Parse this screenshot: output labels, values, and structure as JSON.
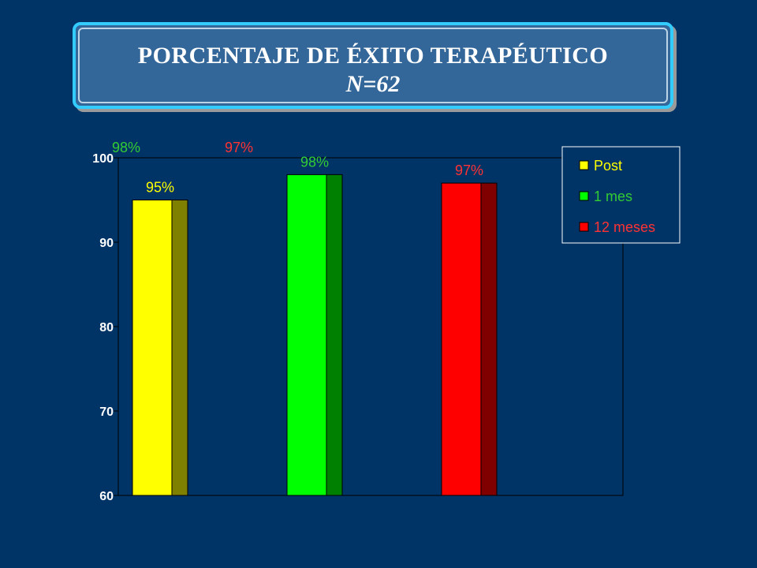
{
  "title": {
    "line1": "PORCENTAJE DE ÉXITO TERAPÉUTICO",
    "line2": "N=62"
  },
  "colors": {
    "background": "#003366",
    "title_border": "#33ccff",
    "post": "#ffff00",
    "post_dark": "#808000",
    "one_month": "#00ff00",
    "one_month_dark": "#008000",
    "twelve_months": "#ff0000",
    "twelve_months_dark": "#800000",
    "label_post": "#ffff00",
    "label_one_month": "#33cc33",
    "label_twelve_months": "#ff3333"
  },
  "chart_data": {
    "type": "bar",
    "categories": [
      "Post",
      "1 mes",
      "12 meses"
    ],
    "values": [
      95,
      98,
      97
    ],
    "data_labels": [
      "95%",
      "98%",
      "97%"
    ],
    "ylim": [
      60,
      100
    ],
    "yticks": [
      60,
      70,
      80,
      90,
      100
    ],
    "xlabel": "",
    "ylabel": "",
    "grid": false,
    "legend": {
      "position": "top-right",
      "entries": [
        "Post",
        "1 mes",
        "12 meses"
      ]
    },
    "annotations": [
      "98%",
      "97%"
    ]
  }
}
